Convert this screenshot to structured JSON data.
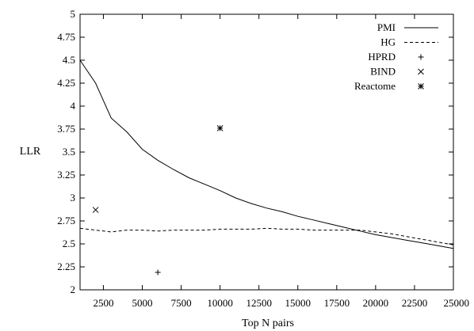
{
  "chart_data": {
    "type": "line",
    "xlabel": "Top N pairs",
    "ylabel": "LLR",
    "xlim": [
      1000,
      25000
    ],
    "ylim": [
      2,
      5
    ],
    "x_ticks": [
      2500,
      5000,
      7500,
      10000,
      12500,
      15000,
      17500,
      20000,
      22500,
      25000
    ],
    "x_tick_labels": [
      "2500",
      "5000",
      "7500",
      "10000",
      "12500",
      "15000",
      "17500",
      "20000",
      "22500",
      "25000"
    ],
    "y_ticks": [
      2,
      2.25,
      2.5,
      2.75,
      3,
      3.25,
      3.5,
      3.75,
      4,
      4.25,
      4.5,
      4.75,
      5
    ],
    "y_tick_labels": [
      "2",
      "2.25",
      "2.5",
      "2.75",
      "3",
      "3.25",
      "3.5",
      "3.75",
      "4",
      "4.25",
      "4.5",
      "4.75",
      "5"
    ],
    "grid": false,
    "legend_position": "top-right",
    "series": [
      {
        "name": "PMI",
        "style": "line-solid",
        "x": [
          1000,
          2000,
          3000,
          4000,
          5000,
          6000,
          7000,
          8000,
          9000,
          10000,
          11000,
          12000,
          13000,
          14000,
          15000,
          16000,
          17000,
          18000,
          19000,
          20000,
          21000,
          22000,
          23000,
          24000,
          25000
        ],
        "y": [
          4.5,
          4.25,
          3.87,
          3.72,
          3.53,
          3.41,
          3.31,
          3.22,
          3.15,
          3.08,
          3.0,
          2.94,
          2.89,
          2.85,
          2.8,
          2.76,
          2.72,
          2.68,
          2.64,
          2.6,
          2.57,
          2.54,
          2.51,
          2.48,
          2.45
        ]
      },
      {
        "name": "HG",
        "style": "line-dashed",
        "x": [
          1000,
          2000,
          3000,
          4000,
          5000,
          6000,
          7000,
          8000,
          9000,
          10000,
          11000,
          12000,
          13000,
          14000,
          15000,
          16000,
          17000,
          18000,
          19000,
          20000,
          21000,
          22000,
          23000,
          24000,
          25000
        ],
        "y": [
          2.67,
          2.65,
          2.63,
          2.65,
          2.65,
          2.64,
          2.65,
          2.65,
          2.65,
          2.66,
          2.66,
          2.66,
          2.67,
          2.66,
          2.66,
          2.65,
          2.65,
          2.65,
          2.65,
          2.63,
          2.61,
          2.58,
          2.55,
          2.52,
          2.49
        ]
      },
      {
        "name": "HPRD",
        "style": "marker-plus",
        "x": [
          6000
        ],
        "y": [
          2.19
        ]
      },
      {
        "name": "BIND",
        "style": "marker-x",
        "x": [
          2000
        ],
        "y": [
          2.87
        ]
      },
      {
        "name": "Reactome",
        "style": "marker-star",
        "x": [
          10000
        ],
        "y": [
          3.76
        ]
      }
    ]
  }
}
